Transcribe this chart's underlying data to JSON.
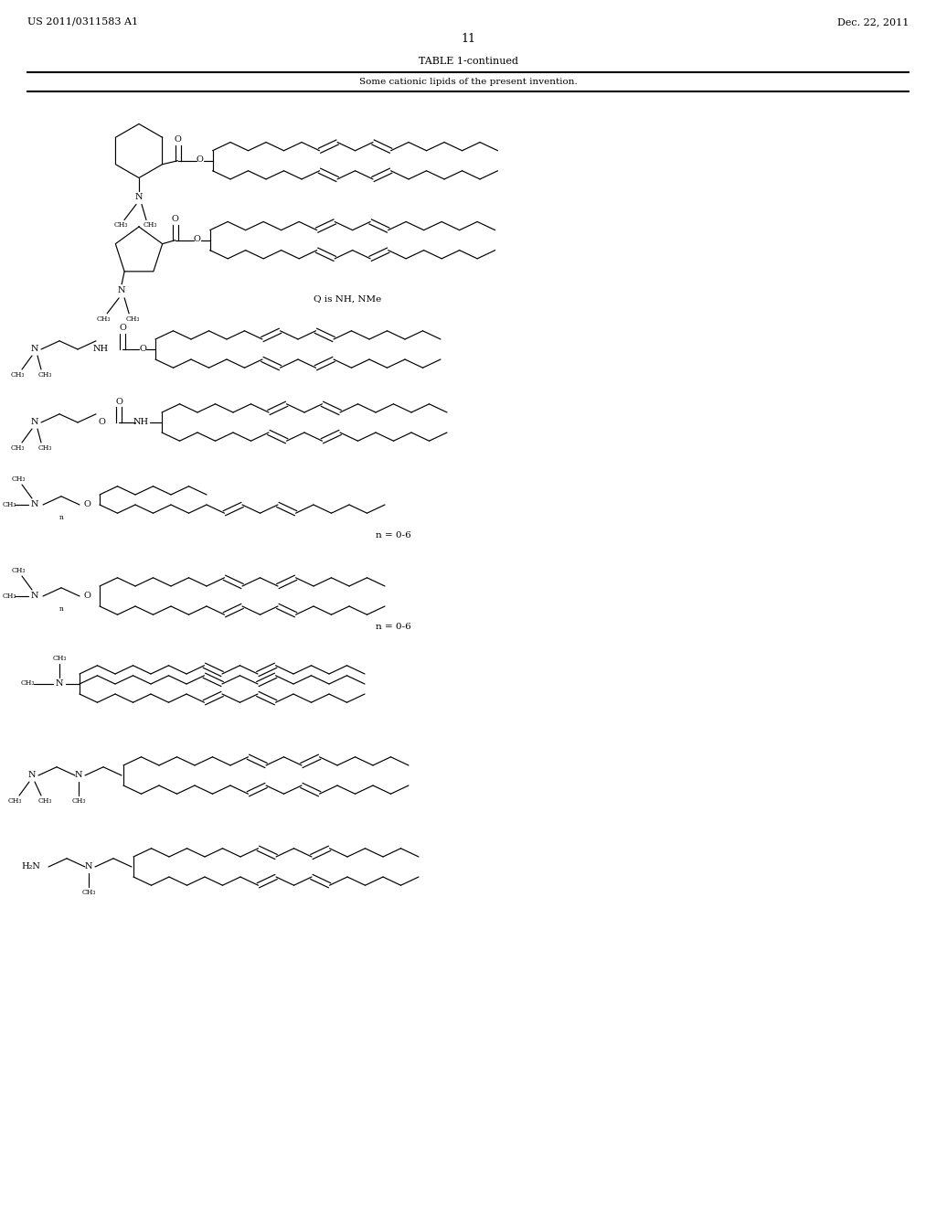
{
  "patent_left": "US 2011/0311583 A1",
  "patent_right": "Dec. 22, 2011",
  "page_number": "11",
  "title": "TABLE 1-continued",
  "subtitle": "Some cationic lipids of the present invention.",
  "background_color": "#ffffff",
  "line_color": "#000000",
  "text_color": "#000000",
  "y_struct": [
    11.55,
    10.45,
    9.38,
    8.58,
    7.68,
    6.68,
    5.72,
    4.72,
    3.72
  ],
  "captions": [
    {
      "text": "",
      "y": 0
    },
    {
      "text": "Q is NH, NMe",
      "y": 9.85
    },
    {
      "text": "Q is NH, NMe",
      "y": 8.98
    },
    {
      "text": "",
      "y": 0
    },
    {
      "text": "n = 0-6",
      "y": 7.22
    },
    {
      "text": "n = 0-6",
      "y": 6.22
    },
    {
      "text": "",
      "y": 0
    },
    {
      "text": "",
      "y": 0
    },
    {
      "text": "",
      "y": 0
    }
  ]
}
